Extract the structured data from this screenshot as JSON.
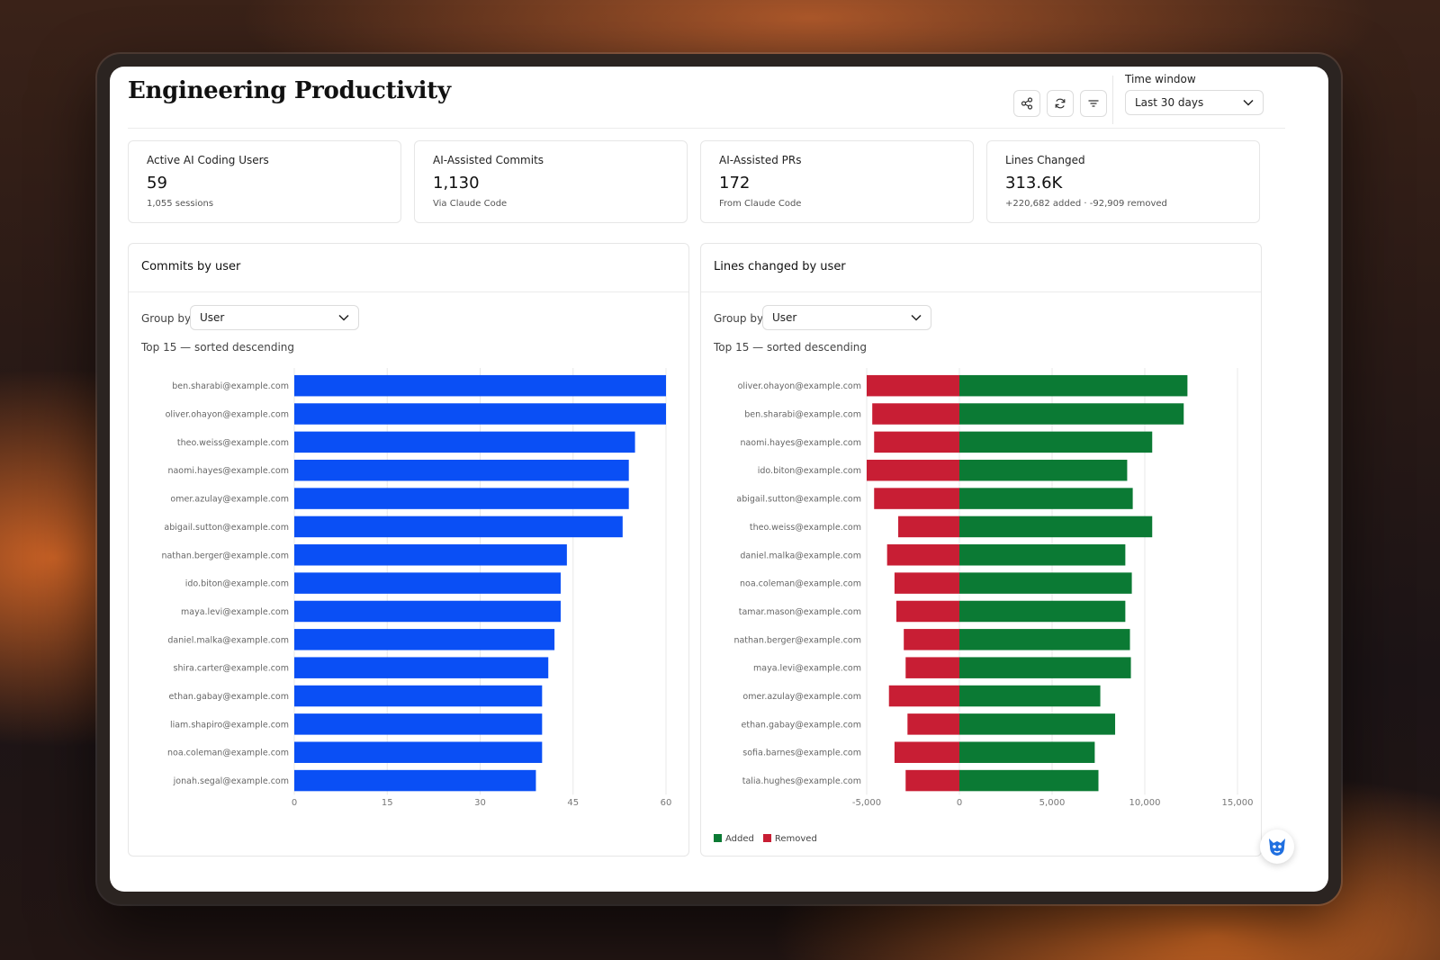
{
  "header": {
    "title": "Engineering Productivity",
    "icons": [
      "share-icon",
      "refresh-icon",
      "filter-icon"
    ],
    "time_window_label": "Time window",
    "time_window_value": "Last 30 days"
  },
  "kpis": [
    {
      "label": "Active AI Coding Users",
      "value": "59",
      "sub": "1,055 sessions"
    },
    {
      "label": "AI-Assisted Commits",
      "value": "1,130",
      "sub": "Via Claude Code"
    },
    {
      "label": "AI-Assisted PRs",
      "value": "172",
      "sub": "From Claude Code"
    },
    {
      "label": "Lines Changed",
      "value": "313.6K",
      "sub": "+220,682 added · -92,909 removed"
    }
  ],
  "panels": {
    "commits": {
      "title": "Commits by user",
      "group_by_label": "Group by",
      "group_by_value": "User",
      "top_note": "Top 15 — sorted descending"
    },
    "lines": {
      "title": "Lines changed by user",
      "group_by_label": "Group by",
      "group_by_value": "User",
      "top_note": "Top 15 — sorted descending",
      "legend": {
        "added": "Added",
        "removed": "Removed"
      }
    }
  },
  "colors": {
    "commits_bar": "#0a4ff5",
    "added": "#0b7a34",
    "removed": "#c81e34"
  },
  "chart_data": [
    {
      "type": "bar",
      "orientation": "horizontal",
      "title": "Commits by user",
      "categories": [
        "ben.sharabi@example.com",
        "oliver.ohayon@example.com",
        "theo.weiss@example.com",
        "naomi.hayes@example.com",
        "omer.azulay@example.com",
        "abigail.sutton@example.com",
        "nathan.berger@example.com",
        "ido.biton@example.com",
        "maya.levi@example.com",
        "daniel.malka@example.com",
        "shira.carter@example.com",
        "ethan.gabay@example.com",
        "liam.shapiro@example.com",
        "noa.coleman@example.com",
        "jonah.segal@example.com"
      ],
      "values": [
        60,
        60,
        55,
        54,
        54,
        53,
        44,
        43,
        43,
        42,
        41,
        40,
        40,
        40,
        39
      ],
      "xlim": [
        0,
        60
      ],
      "xticks": [
        "0",
        "15",
        "30",
        "45",
        "60"
      ],
      "grid": true
    },
    {
      "type": "bar",
      "orientation": "horizontal",
      "stacked": "diverging",
      "title": "Lines changed by user",
      "categories": [
        "oliver.ohayon@example.com",
        "ben.sharabi@example.com",
        "naomi.hayes@example.com",
        "ido.biton@example.com",
        "abigail.sutton@example.com",
        "theo.weiss@example.com",
        "daniel.malka@example.com",
        "noa.coleman@example.com",
        "tamar.mason@example.com",
        "nathan.berger@example.com",
        "maya.levi@example.com",
        "omer.azulay@example.com",
        "ethan.gabay@example.com",
        "sofia.barnes@example.com",
        "talia.hughes@example.com"
      ],
      "series": [
        {
          "name": "Added",
          "values": [
            12300,
            12100,
            10400,
            9050,
            9350,
            10400,
            8950,
            9300,
            8950,
            9200,
            9250,
            7600,
            8400,
            7300,
            7500
          ]
        },
        {
          "name": "Removed",
          "values": [
            -5000,
            -4700,
            -4600,
            -5000,
            -4600,
            -3300,
            -3900,
            -3500,
            -3400,
            -3000,
            -2900,
            -3800,
            -2800,
            -3500,
            -2900
          ]
        }
      ],
      "xlim": [
        -5000,
        15000
      ],
      "xticks": [
        "-5,000",
        "0",
        "5,000",
        "10,000",
        "15,000"
      ],
      "legend": "bottom-left",
      "grid": true
    }
  ]
}
